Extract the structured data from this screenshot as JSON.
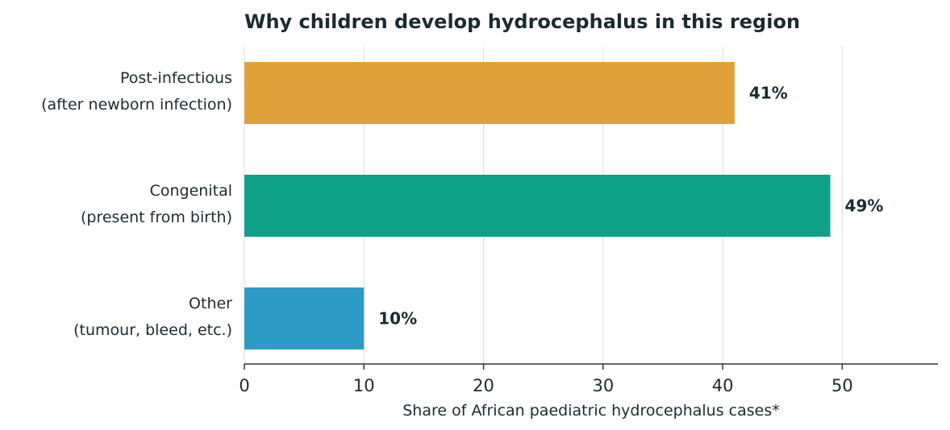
{
  "chart_data": {
    "type": "bar",
    "orientation": "horizontal",
    "title": "Why children develop hydrocephalus in this region",
    "xlabel": "Share of African paediatric hydrocephalus cases*",
    "ylabel": "",
    "xlim": [
      0,
      58
    ],
    "xticks": [
      0,
      10,
      20,
      30,
      40,
      50
    ],
    "grid": "vertical",
    "legend": "none",
    "categories": [
      [
        "Post-infectious",
        "(after newborn infection)"
      ],
      [
        "Congenital",
        "(present from birth)"
      ],
      [
        "Other",
        "(tumour, bleed, etc.)"
      ]
    ],
    "values": [
      41,
      49,
      10
    ],
    "data_labels": [
      "41%",
      "49%",
      "10%"
    ],
    "colors": [
      "#e0a13b",
      "#0fa187",
      "#2e9bc6"
    ]
  }
}
